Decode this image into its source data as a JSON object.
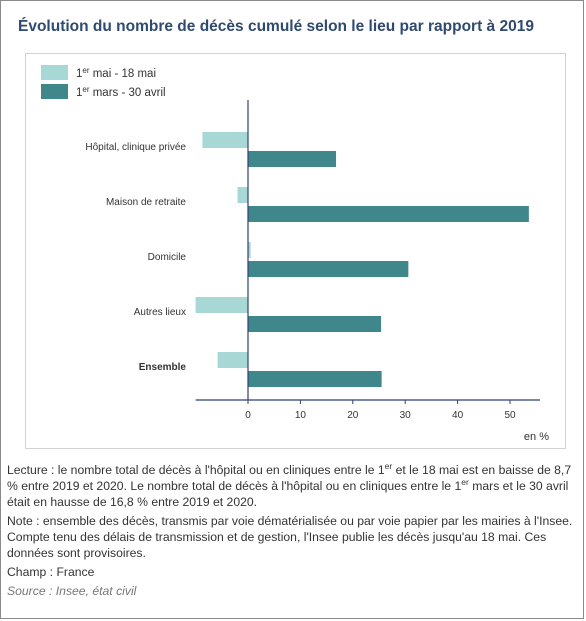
{
  "title": "Évolution du nombre de décès cumulé selon le lieu par rapport à 2019",
  "notes": {
    "lecture_1": "Lecture : le nombre total de décès à l'hôpital ou en cliniques entre le 1",
    "lecture_2": " et le 18 mai est en baisse de 8,7 % entre 2019 et 2020. Le nombre total de décès à l'hôpital ou en cliniques entre le 1",
    "lecture_3": " mars et le 30 avril était en hausse de 16,8 % entre 2019 et 2020.",
    "note": "Note : ensemble des décès, transmis par voie dématérialisée ou par voie papier par les mairies à l'Insee. Compte tenu des délais de transmission et de gestion, l'Insee publie les décès jusqu'au 18 mai. Ces données sont provisoires.",
    "champ": "Champ : France",
    "source": "Source : Insee, état civil"
  },
  "chart_data": {
    "type": "bar",
    "orientation": "horizontal",
    "categories": [
      "Hôpital, clinique privée",
      "Maison de retraite",
      "Domicile",
      "Autres lieux",
      "Ensemble"
    ],
    "bold_categories": [
      "Ensemble"
    ],
    "series": [
      {
        "name": "1er mai - 18 mai",
        "legend_main": "1",
        "legend_sup": "er",
        "legend_rest": " mai - 18 mai",
        "color": "#a8d8d6",
        "values": [
          -8.7,
          -2.0,
          0.5,
          -10.0,
          -5.8
        ]
      },
      {
        "name": "1er mars - 30 avril",
        "legend_main": "1",
        "legend_sup": "er",
        "legend_rest": " mars - 30 avril",
        "color": "#3f878b",
        "values": [
          16.8,
          53.6,
          30.6,
          25.4,
          25.5
        ]
      }
    ],
    "xlabel": "en %",
    "xlim": [
      -10,
      55
    ],
    "xticks": [
      0,
      10,
      20,
      30,
      40,
      50
    ],
    "grid": false,
    "legend_position": "top-left"
  }
}
